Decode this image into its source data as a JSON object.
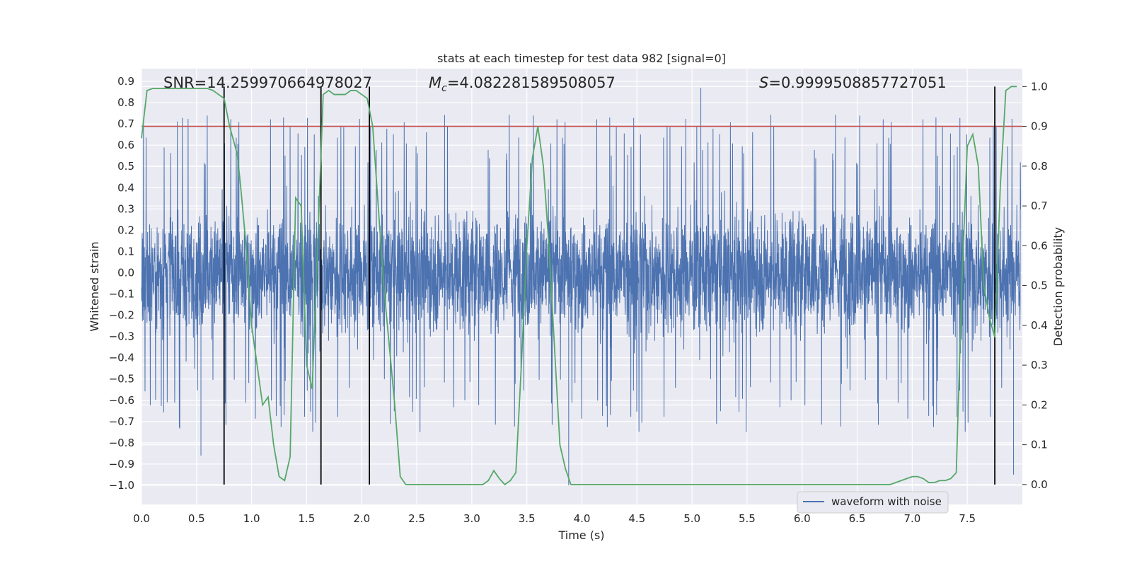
{
  "chart_data": {
    "type": "line",
    "title": "stats at each timestep for test data 982 [signal=0]",
    "xlabel": "Time (s)",
    "ylabel_left": "Whitened strain",
    "ylabel_right": "Detection probability",
    "xlim": [
      0.0,
      8.0
    ],
    "ylim_left": [
      -1.09,
      0.96
    ],
    "ylim_right": [
      -0.05,
      1.045
    ],
    "x_ticks": [
      0.0,
      0.5,
      1.0,
      1.5,
      2.0,
      2.5,
      3.0,
      3.5,
      4.0,
      4.5,
      5.0,
      5.5,
      6.0,
      6.5,
      7.0,
      7.5
    ],
    "x_tick_labels": [
      "0.0",
      "0.5",
      "1.0",
      "1.5",
      "2.0",
      "2.5",
      "3.0",
      "3.5",
      "4.0",
      "4.5",
      "5.0",
      "5.5",
      "6.0",
      "6.5",
      "7.0",
      "7.5"
    ],
    "y_left_ticks": [
      0.9,
      0.8,
      0.7,
      0.6,
      0.5,
      0.4,
      0.3,
      0.2,
      0.1,
      0.0,
      -0.1,
      -0.2,
      -0.3,
      -0.4,
      -0.5,
      -0.6,
      -0.7,
      -0.8,
      -0.9,
      -1.0
    ],
    "y_left_tick_labels": [
      "0.9",
      "0.8",
      "0.7",
      "0.6",
      "0.5",
      "0.4",
      "0.3",
      "0.2",
      "0.1",
      "0.0",
      "−0.1",
      "−0.2",
      "−0.3",
      "−0.4",
      "−0.5",
      "−0.6",
      "−0.7",
      "−0.8",
      "−0.9",
      "−1.0"
    ],
    "y_right_ticks": [
      1.0,
      0.9,
      0.8,
      0.7,
      0.6,
      0.5,
      0.4,
      0.3,
      0.2,
      0.1,
      0.0
    ],
    "y_right_tick_labels": [
      "1.0",
      "0.9",
      "0.8",
      "0.7",
      "0.6",
      "0.5",
      "0.4",
      "0.3",
      "0.2",
      "0.1",
      "0.0"
    ],
    "grid": true,
    "legend": {
      "entries": [
        "waveform with noise"
      ],
      "placement": "lower-right"
    },
    "annotations": {
      "snr": "SNR=14.259970664978027",
      "mc_symbol": "M",
      "mc_sub": "c",
      "mc_value": "=4.082281589508057",
      "s_symbol": "S",
      "s_value": "=0.9999508857727051"
    },
    "waveform": {
      "name": "waveform with noise",
      "color": "#4c72b0",
      "samples": 4000,
      "typical_range": [
        -0.45,
        0.45
      ],
      "min": -1.0,
      "max": 0.87
    },
    "threshold": {
      "value": 0.9,
      "axis": "right",
      "color": "#c44e52"
    },
    "vertical_lines": {
      "x": [
        0.75,
        1.63,
        2.07,
        7.75
      ],
      "color": "#000000"
    },
    "probability": {
      "color": "#55a868",
      "axis": "right",
      "x": [
        0.0,
        0.05,
        0.1,
        0.2,
        0.3,
        0.4,
        0.5,
        0.6,
        0.65,
        0.7,
        0.75,
        0.8,
        0.87,
        0.9,
        0.95,
        1.0,
        1.05,
        1.1,
        1.15,
        1.2,
        1.25,
        1.3,
        1.35,
        1.4,
        1.45,
        1.5,
        1.55,
        1.6,
        1.65,
        1.7,
        1.75,
        1.8,
        1.85,
        1.9,
        1.95,
        2.0,
        2.05,
        2.1,
        2.15,
        2.2,
        2.25,
        2.3,
        2.35,
        2.4,
        2.5,
        2.6,
        2.7,
        2.8,
        2.9,
        3.0,
        3.05,
        3.1,
        3.15,
        3.2,
        3.25,
        3.3,
        3.35,
        3.4,
        3.45,
        3.5,
        3.55,
        3.6,
        3.65,
        3.7,
        3.75,
        3.8,
        3.85,
        3.9,
        3.95,
        4.0,
        4.2,
        4.5,
        5.0,
        5.5,
        6.0,
        6.3,
        6.6,
        6.8,
        6.9,
        7.0,
        7.05,
        7.1,
        7.15,
        7.2,
        7.25,
        7.3,
        7.35,
        7.4,
        7.45,
        7.5,
        7.55,
        7.6,
        7.65,
        7.7,
        7.75,
        7.8,
        7.85,
        7.9,
        7.95
      ],
      "y": [
        0.87,
        0.99,
        0.995,
        0.995,
        0.995,
        0.995,
        0.995,
        0.995,
        0.99,
        0.98,
        0.97,
        0.9,
        0.83,
        0.75,
        0.6,
        0.4,
        0.3,
        0.2,
        0.22,
        0.1,
        0.02,
        0.01,
        0.07,
        0.72,
        0.7,
        0.3,
        0.24,
        0.6,
        0.98,
        0.99,
        0.98,
        0.98,
        0.98,
        0.99,
        0.99,
        0.98,
        0.97,
        0.9,
        0.7,
        0.5,
        0.35,
        0.2,
        0.02,
        0.0,
        0.0,
        0.0,
        0.0,
        0.0,
        0.0,
        0.0,
        0.0,
        0.0,
        0.01,
        0.035,
        0.015,
        0.0,
        0.01,
        0.03,
        0.3,
        0.6,
        0.82,
        0.9,
        0.8,
        0.6,
        0.35,
        0.1,
        0.04,
        0.0,
        0.0,
        0.0,
        0.0,
        0.0,
        0.0,
        0.0,
        0.0,
        0.0,
        0.0,
        0.0,
        0.01,
        0.02,
        0.02,
        0.015,
        0.005,
        0.005,
        0.01,
        0.01,
        0.015,
        0.03,
        0.5,
        0.85,
        0.88,
        0.8,
        0.5,
        0.42,
        0.37,
        0.75,
        0.99,
        1.0,
        1.0
      ]
    }
  }
}
